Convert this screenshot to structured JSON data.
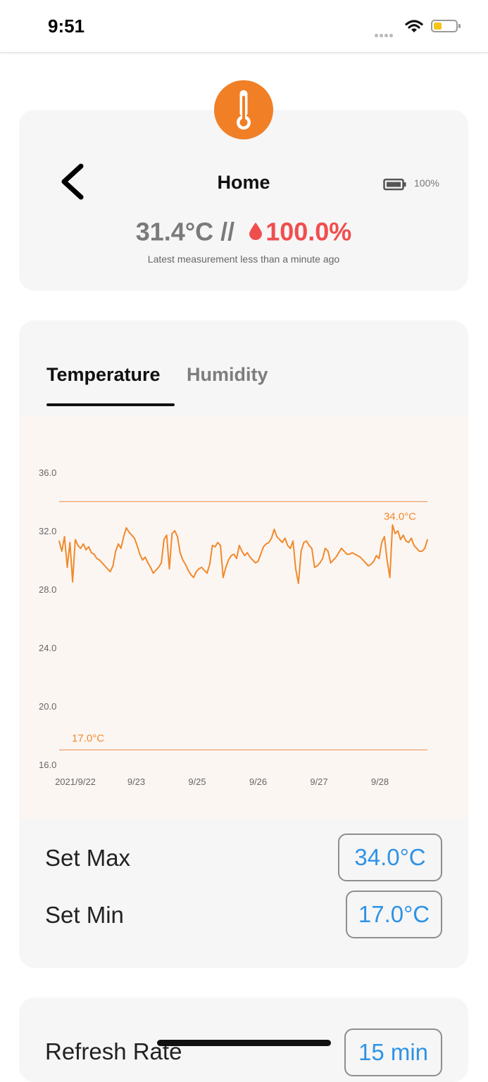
{
  "status_bar": {
    "time": "9:51",
    "icons": [
      "signal-dots-icon",
      "wifi-icon",
      "battery-icon"
    ],
    "battery_color": "#f5c518"
  },
  "device": {
    "title": "Home",
    "battery": "100%",
    "temperature": "31.4°C",
    "separator": "//",
    "humidity": "100.0%",
    "last_measurement": "Latest measurement less than a minute ago",
    "icon": "thermometer-icon",
    "accent_color": "#f07f26",
    "humidity_color": "#f04e4e"
  },
  "tabs": {
    "temperature": "Temperature",
    "humidity": "Humidity",
    "active": "Temperature"
  },
  "chart_data": {
    "type": "line",
    "ylim": [
      16,
      36
    ],
    "yticks": [
      "36.0",
      "32.0",
      "28.0",
      "24.0",
      "20.0",
      "16.0"
    ],
    "xticks": [
      "2021/9/22",
      "9/23",
      "9/25",
      "9/26",
      "9/27",
      "9/28"
    ],
    "max_threshold": {
      "value": 34.0,
      "label": "34.0°C"
    },
    "min_threshold": {
      "value": 17.0,
      "label": "17.0°C"
    },
    "line_color": "#f08a2c",
    "series": [
      {
        "values": [
          31.3,
          30.6,
          31.6,
          29.5,
          31.2,
          28.5,
          31.4,
          31.0,
          30.8,
          31.1,
          30.7,
          30.9,
          30.5,
          30.4,
          30.1,
          30.0,
          29.8,
          29.6,
          29.4,
          29.2,
          29.6,
          30.6,
          31.1,
          30.8,
          31.6,
          32.2,
          31.9,
          31.7,
          31.5,
          31.0,
          30.4,
          30.0,
          30.2,
          29.8,
          29.5,
          29.1,
          29.3,
          29.5,
          29.8,
          31.4,
          31.7,
          29.4,
          31.8,
          32.0,
          31.6,
          30.5,
          30.0,
          29.7,
          29.3,
          29.0,
          28.8,
          29.2,
          29.4,
          29.5,
          29.3,
          29.1,
          29.7,
          31.0,
          30.9,
          31.2,
          31.0,
          28.8,
          29.5,
          30.0,
          30.3,
          30.4,
          30.1,
          31.0,
          30.6,
          30.3,
          30.5,
          30.2,
          30.0,
          29.8,
          29.9,
          30.4,
          30.9,
          31.1,
          31.2,
          31.5,
          32.1,
          31.6,
          31.4,
          31.2,
          31.5,
          31.0,
          30.8,
          31.3,
          29.4,
          28.4,
          30.6,
          31.2,
          31.3,
          31.0,
          30.8,
          29.5,
          29.6,
          29.8,
          30.1,
          30.8,
          30.6,
          29.8,
          30.0,
          30.2,
          30.5,
          30.8,
          30.6,
          30.4,
          30.4,
          30.5,
          30.4,
          30.3,
          30.2,
          30.0,
          29.8,
          29.6,
          29.7,
          29.9,
          30.3,
          30.1,
          31.2,
          31.6,
          30.0,
          28.8,
          32.4,
          31.8,
          32.0,
          31.4,
          31.7,
          31.3,
          31.2,
          31.5,
          31.0,
          30.8,
          30.6,
          30.6,
          30.8,
          31.4
        ]
      }
    ]
  },
  "settings": {
    "set_max_label": "Set Max",
    "set_max_value": "34.0°C",
    "set_min_label": "Set Min",
    "set_min_value": "17.0°C",
    "refresh_label": "Refresh Rate",
    "refresh_value": "15 min",
    "value_color": "#2f93e6"
  }
}
